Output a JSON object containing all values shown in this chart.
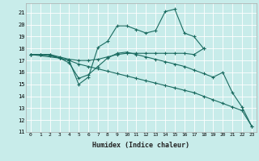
{
  "xlabel": "Humidex (Indice chaleur)",
  "background_color": "#c8ecea",
  "grid_color": "#ffffff",
  "line_color": "#1a6b60",
  "xlim": [
    -0.5,
    23.5
  ],
  "ylim": [
    11,
    21.8
  ],
  "yticks": [
    11,
    12,
    13,
    14,
    15,
    16,
    17,
    18,
    19,
    20,
    21
  ],
  "xticks": [
    0,
    1,
    2,
    3,
    4,
    5,
    6,
    7,
    8,
    9,
    10,
    11,
    12,
    13,
    14,
    15,
    16,
    17,
    18,
    19,
    20,
    21,
    22,
    23
  ],
  "lines": [
    {
      "x": [
        0,
        1,
        2,
        3,
        4,
        5,
        6,
        7,
        8,
        9,
        10,
        11,
        12,
        13,
        14,
        15,
        16,
        17,
        18
      ],
      "y": [
        17.5,
        17.5,
        17.5,
        17.2,
        17.0,
        15.0,
        15.6,
        18.1,
        18.6,
        19.9,
        19.9,
        19.6,
        19.3,
        19.5,
        21.1,
        21.3,
        19.3,
        19.0,
        18.0
      ]
    },
    {
      "x": [
        0,
        1,
        2,
        3,
        4,
        5,
        6,
        7,
        8,
        9,
        10,
        11,
        12,
        13,
        14,
        15,
        16,
        17,
        18
      ],
      "y": [
        17.5,
        17.5,
        17.5,
        17.3,
        17.1,
        17.0,
        17.0,
        17.1,
        17.3,
        17.5,
        17.6,
        17.6,
        17.6,
        17.6,
        17.6,
        17.6,
        17.6,
        17.5,
        18.0
      ]
    },
    {
      "x": [
        0,
        1,
        2,
        3,
        4,
        5,
        6,
        7,
        8,
        9,
        10,
        11,
        12,
        13,
        14,
        15,
        16,
        17,
        18,
        19,
        20,
        21,
        22,
        23
      ],
      "y": [
        17.5,
        17.5,
        17.4,
        17.2,
        17.0,
        16.7,
        16.5,
        16.3,
        16.1,
        15.9,
        15.7,
        15.5,
        15.3,
        15.1,
        14.9,
        14.7,
        14.5,
        14.3,
        14.0,
        13.7,
        13.4,
        13.1,
        12.8,
        11.5
      ]
    },
    {
      "x": [
        0,
        3,
        4,
        5,
        6,
        7,
        8,
        9,
        10,
        11,
        12,
        13,
        14,
        15,
        16,
        17,
        18,
        19,
        20,
        21,
        22,
        23
      ],
      "y": [
        17.5,
        17.2,
        16.8,
        15.5,
        15.8,
        16.5,
        17.2,
        17.6,
        17.7,
        17.5,
        17.3,
        17.1,
        16.9,
        16.7,
        16.5,
        16.2,
        15.9,
        15.6,
        16.0,
        14.3,
        13.1,
        11.5
      ]
    }
  ]
}
